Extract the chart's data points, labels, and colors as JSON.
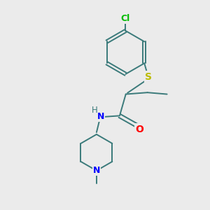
{
  "background_color": "#ebebeb",
  "bond_color": "#3a7a7a",
  "atom_colors": {
    "Cl": "#00bb00",
    "S": "#bbbb00",
    "O": "#ff0000",
    "N": "#0000ff",
    "H": "#3a7a7a"
  },
  "figsize": [
    3.0,
    3.0
  ],
  "dpi": 100
}
